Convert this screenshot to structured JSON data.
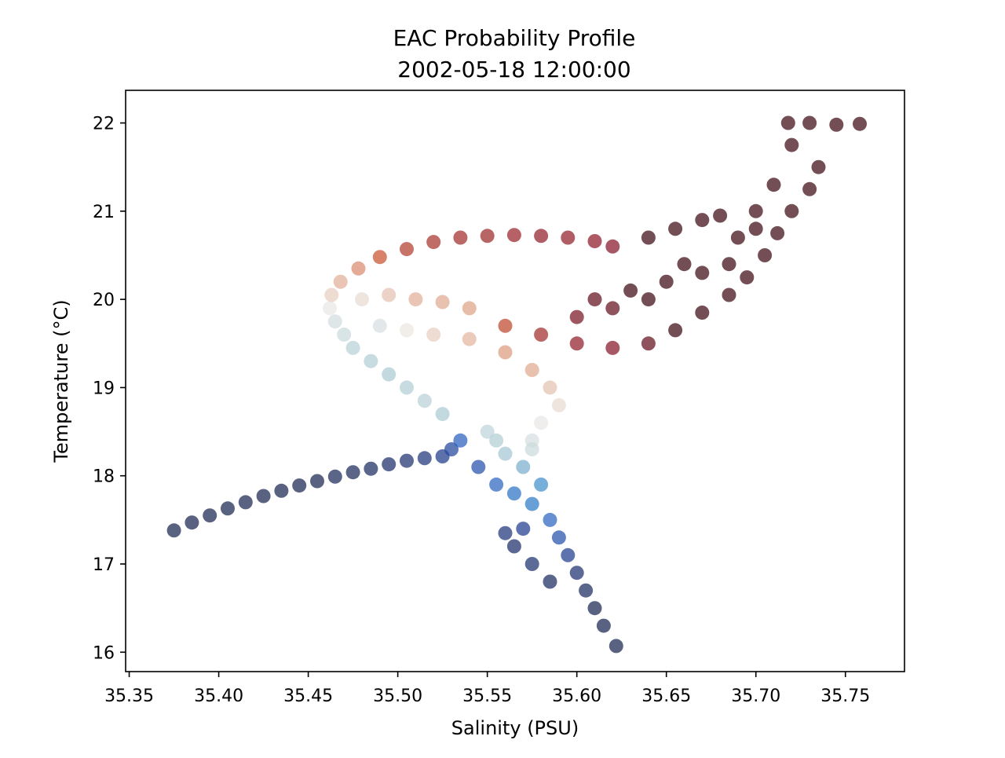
{
  "chart_data": {
    "type": "scatter",
    "title": "EAC Probability Profile",
    "subtitle": "2002-05-18 12:00:00",
    "xlabel": "Salinity (PSU)",
    "ylabel": "Temperature (°C)",
    "xlim": [
      35.348,
      35.783
    ],
    "ylim": [
      15.78,
      22.37
    ],
    "xticks": [
      35.35,
      35.4,
      35.45,
      35.5,
      35.55,
      35.6,
      35.65,
      35.7,
      35.75
    ],
    "xtick_labels": [
      "35.35",
      "35.40",
      "35.45",
      "35.50",
      "35.55",
      "35.60",
      "35.65",
      "35.70",
      "35.75"
    ],
    "yticks": [
      16,
      17,
      18,
      19,
      20,
      21,
      22
    ],
    "ytick_labels": [
      "16",
      "17",
      "18",
      "19",
      "20",
      "21",
      "22"
    ],
    "grid": false,
    "legend": "none",
    "colormap": [
      "#1a2550",
      "#1f3a8a",
      "#2a5fc0",
      "#2f86c9",
      "#a9c9d3",
      "#eceae6",
      "#e0a58a",
      "#c8532f",
      "#8e1a2a",
      "#3e0a14"
    ],
    "series": [
      {
        "points": [
          [
            35.375,
            17.38,
            0.0
          ],
          [
            35.385,
            17.47,
            0.0
          ],
          [
            35.395,
            17.55,
            0.0
          ],
          [
            35.405,
            17.63,
            0.0
          ],
          [
            35.415,
            17.7,
            0.0
          ],
          [
            35.425,
            17.77,
            0.0
          ],
          [
            35.435,
            17.83,
            0.0
          ],
          [
            35.445,
            17.89,
            0.0
          ],
          [
            35.455,
            17.94,
            0.0
          ],
          [
            35.465,
            17.99,
            0.02
          ],
          [
            35.475,
            18.04,
            0.02
          ],
          [
            35.485,
            18.08,
            0.03
          ],
          [
            35.495,
            18.13,
            0.05
          ],
          [
            35.505,
            18.17,
            0.06
          ],
          [
            35.515,
            18.2,
            0.08
          ],
          [
            35.525,
            18.22,
            0.11
          ],
          [
            35.53,
            18.3,
            0.15
          ],
          [
            35.535,
            18.4,
            0.22
          ],
          [
            35.545,
            18.1,
            0.18
          ],
          [
            35.555,
            17.9,
            0.24
          ],
          [
            35.565,
            17.8,
            0.28
          ],
          [
            35.575,
            17.68,
            0.3
          ],
          [
            35.585,
            17.5,
            0.24
          ],
          [
            35.59,
            17.3,
            0.18
          ],
          [
            35.595,
            17.1,
            0.12
          ],
          [
            35.6,
            16.9,
            0.06
          ],
          [
            35.605,
            16.7,
            0.03
          ],
          [
            35.61,
            16.5,
            0.0
          ],
          [
            35.615,
            16.3,
            0.0
          ],
          [
            35.622,
            16.07,
            0.0
          ],
          [
            35.565,
            17.2,
            0.05
          ],
          [
            35.575,
            17.0,
            0.06
          ],
          [
            35.585,
            16.8,
            0.03
          ],
          [
            35.57,
            17.4,
            0.12
          ],
          [
            35.56,
            17.35,
            0.08
          ],
          [
            35.58,
            17.9,
            0.35
          ],
          [
            35.57,
            18.1,
            0.4
          ],
          [
            35.56,
            18.25,
            0.44
          ],
          [
            35.555,
            18.4,
            0.46
          ],
          [
            35.55,
            18.5,
            0.48
          ],
          [
            35.525,
            18.7,
            0.45
          ],
          [
            35.515,
            18.85,
            0.47
          ],
          [
            35.505,
            19.0,
            0.46
          ],
          [
            35.495,
            19.15,
            0.45
          ],
          [
            35.485,
            19.3,
            0.46
          ],
          [
            35.475,
            19.45,
            0.47
          ],
          [
            35.47,
            19.6,
            0.5
          ],
          [
            35.465,
            19.75,
            0.51
          ],
          [
            35.462,
            19.9,
            0.55
          ],
          [
            35.463,
            20.05,
            0.6
          ],
          [
            35.468,
            20.2,
            0.65
          ],
          [
            35.478,
            20.35,
            0.7
          ],
          [
            35.49,
            20.48,
            0.78
          ],
          [
            35.505,
            20.57,
            0.82
          ],
          [
            35.52,
            20.65,
            0.84
          ],
          [
            35.535,
            20.7,
            0.85
          ],
          [
            35.55,
            20.72,
            0.86
          ],
          [
            35.565,
            20.73,
            0.87
          ],
          [
            35.58,
            20.72,
            0.88
          ],
          [
            35.595,
            20.7,
            0.88
          ],
          [
            35.61,
            20.66,
            0.89
          ],
          [
            35.62,
            20.6,
            0.9
          ],
          [
            35.48,
            20.0,
            0.58
          ],
          [
            35.495,
            20.05,
            0.62
          ],
          [
            35.51,
            20.0,
            0.65
          ],
          [
            35.525,
            19.97,
            0.66
          ],
          [
            35.54,
            19.9,
            0.67
          ],
          [
            35.49,
            19.7,
            0.52
          ],
          [
            35.505,
            19.65,
            0.56
          ],
          [
            35.52,
            19.6,
            0.6
          ],
          [
            35.54,
            19.55,
            0.64
          ],
          [
            35.56,
            19.4,
            0.68
          ],
          [
            35.575,
            19.2,
            0.66
          ],
          [
            35.585,
            19.0,
            0.62
          ],
          [
            35.59,
            18.8,
            0.58
          ],
          [
            35.58,
            18.6,
            0.55
          ],
          [
            35.575,
            18.4,
            0.52
          ],
          [
            35.575,
            18.3,
            0.5
          ],
          [
            35.56,
            19.7,
            0.8
          ],
          [
            35.58,
            19.6,
            0.85
          ],
          [
            35.6,
            19.5,
            0.88
          ],
          [
            35.62,
            19.45,
            0.9
          ],
          [
            35.64,
            19.5,
            0.95
          ],
          [
            35.655,
            19.65,
            1.0
          ],
          [
            35.67,
            19.85,
            1.0
          ],
          [
            35.685,
            20.05,
            1.0
          ],
          [
            35.695,
            20.25,
            1.0
          ],
          [
            35.705,
            20.5,
            1.0
          ],
          [
            35.712,
            20.75,
            1.0
          ],
          [
            35.72,
            21.0,
            1.0
          ],
          [
            35.73,
            21.25,
            1.0
          ],
          [
            35.735,
            21.5,
            1.0
          ],
          [
            35.72,
            21.75,
            1.0
          ],
          [
            35.718,
            22.0,
            1.0
          ],
          [
            35.73,
            22.0,
            1.0
          ],
          [
            35.745,
            21.98,
            1.0
          ],
          [
            35.758,
            21.99,
            1.0
          ],
          [
            35.64,
            20.7,
            1.0
          ],
          [
            35.655,
            20.8,
            1.0
          ],
          [
            35.67,
            20.9,
            1.0
          ],
          [
            35.68,
            20.95,
            1.0
          ],
          [
            35.69,
            20.7,
            1.0
          ],
          [
            35.685,
            20.4,
            1.0
          ],
          [
            35.67,
            20.3,
            1.0
          ],
          [
            35.65,
            20.2,
            1.0
          ],
          [
            35.63,
            20.1,
            1.0
          ],
          [
            35.61,
            20.0,
            0.95
          ],
          [
            35.6,
            19.8,
            0.92
          ],
          [
            35.62,
            19.9,
            0.95
          ],
          [
            35.64,
            20.0,
            1.0
          ],
          [
            35.66,
            20.4,
            1.0
          ],
          [
            35.7,
            21.0,
            1.0
          ],
          [
            35.71,
            21.3,
            1.0
          ],
          [
            35.7,
            20.8,
            1.0
          ]
        ]
      }
    ]
  }
}
